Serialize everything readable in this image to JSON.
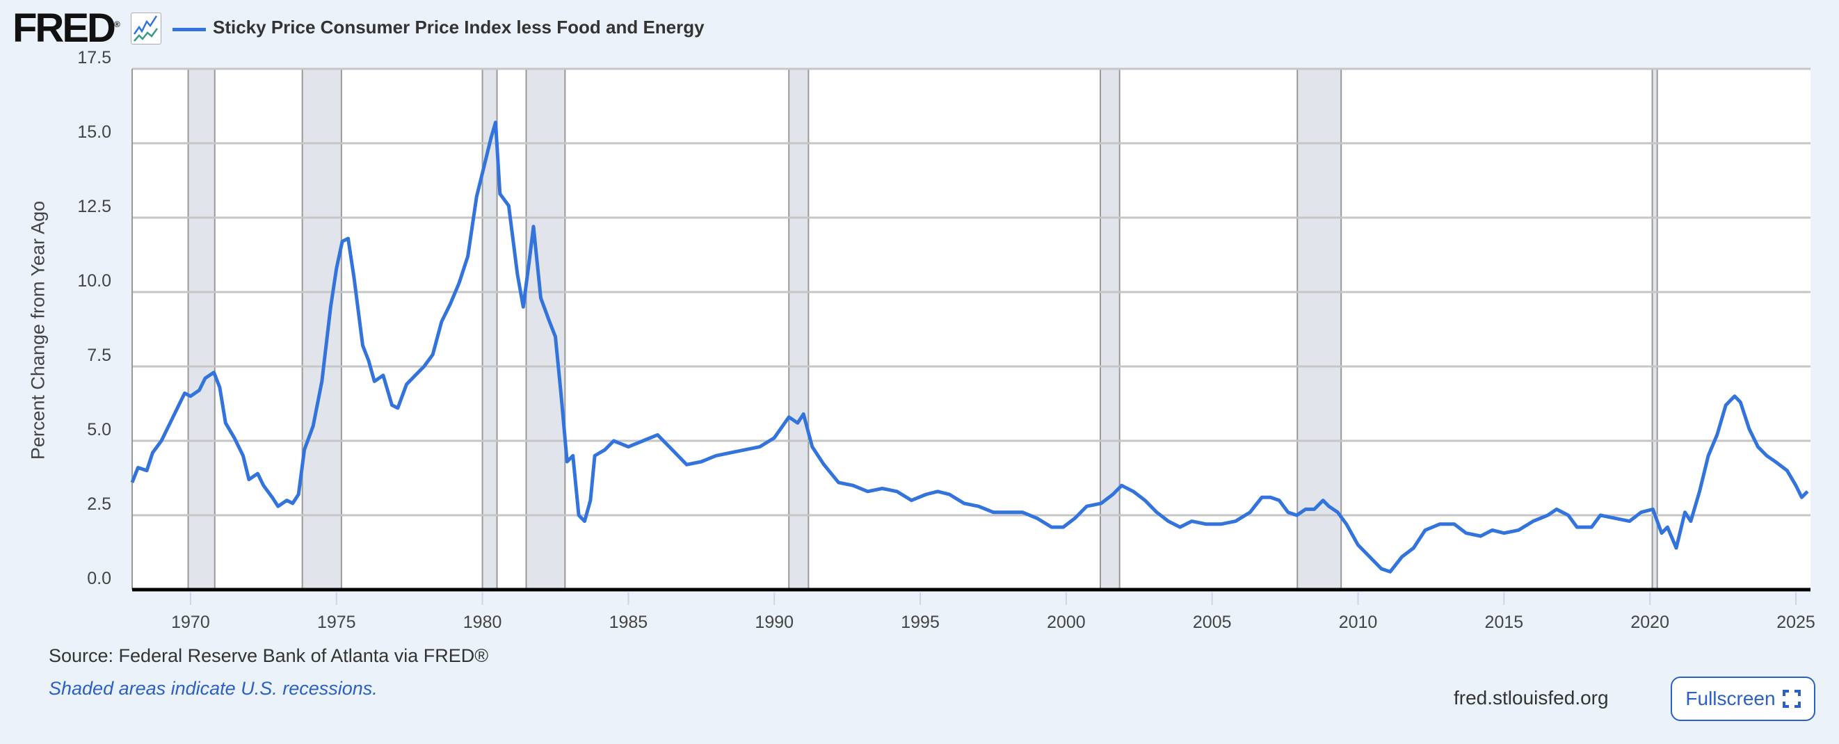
{
  "header": {
    "logo_text": "FRED",
    "logo_mark": "®",
    "icon": "line-chart-icon",
    "series_title": "Sticky Price Consumer Price Index less Food and Energy"
  },
  "footer": {
    "source": "Source: Federal Reserve Bank of Atlanta via FRED®",
    "note": "Shaded areas indicate U.S. recessions.",
    "site": "fred.stlouisfed.org",
    "fullscreen_label": "Fullscreen",
    "fullscreen_icon": "expand-icon"
  },
  "colors": {
    "line": "#3273dc",
    "recession": "#e1e5eb",
    "grid": "#c6c6c6",
    "background": "#ebf2fa",
    "accent": "#2b61c5"
  },
  "chart_data": {
    "type": "line",
    "title": "Sticky Price Consumer Price Index less Food and Energy",
    "xlabel": "",
    "ylabel": "Percent Change from Year Ago",
    "xlim": [
      1968.0,
      2025.5
    ],
    "ylim": [
      0,
      17.5
    ],
    "yticks": [
      "0.0",
      "2.5",
      "5.0",
      "7.5",
      "10.0",
      "12.5",
      "15.0",
      "17.5"
    ],
    "xticks": [
      "1970",
      "1975",
      "1980",
      "1985",
      "1990",
      "1995",
      "2000",
      "2005",
      "2010",
      "2015",
      "2020",
      "2025"
    ],
    "grid": true,
    "recessions": [
      [
        1969.92,
        1970.83
      ],
      [
        1973.83,
        1975.17
      ],
      [
        1980.0,
        1980.5
      ],
      [
        1981.5,
        1982.83
      ],
      [
        1990.5,
        1991.17
      ],
      [
        2001.17,
        2001.83
      ],
      [
        2007.92,
        2009.42
      ],
      [
        2020.08,
        2020.25
      ]
    ],
    "series": [
      {
        "name": "Sticky Price Consumer Price Index less Food and Energy",
        "points": [
          [
            1968.0,
            3.6
          ],
          [
            1968.2,
            4.1
          ],
          [
            1968.5,
            4.0
          ],
          [
            1968.7,
            4.6
          ],
          [
            1969.0,
            5.0
          ],
          [
            1969.3,
            5.6
          ],
          [
            1969.6,
            6.2
          ],
          [
            1969.8,
            6.6
          ],
          [
            1970.0,
            6.5
          ],
          [
            1970.3,
            6.7
          ],
          [
            1970.5,
            7.1
          ],
          [
            1970.8,
            7.3
          ],
          [
            1971.0,
            6.8
          ],
          [
            1971.2,
            5.6
          ],
          [
            1971.5,
            5.1
          ],
          [
            1971.8,
            4.5
          ],
          [
            1972.0,
            3.7
          ],
          [
            1972.3,
            3.9
          ],
          [
            1972.5,
            3.5
          ],
          [
            1972.8,
            3.1
          ],
          [
            1973.0,
            2.8
          ],
          [
            1973.3,
            3.0
          ],
          [
            1973.5,
            2.9
          ],
          [
            1973.7,
            3.2
          ],
          [
            1973.9,
            4.7
          ],
          [
            1974.2,
            5.5
          ],
          [
            1974.5,
            7.0
          ],
          [
            1974.8,
            9.5
          ],
          [
            1975.0,
            10.8
          ],
          [
            1975.2,
            11.7
          ],
          [
            1975.4,
            11.8
          ],
          [
            1975.6,
            10.5
          ],
          [
            1975.9,
            8.2
          ],
          [
            1976.1,
            7.7
          ],
          [
            1976.3,
            7.0
          ],
          [
            1976.6,
            7.2
          ],
          [
            1976.9,
            6.2
          ],
          [
            1977.1,
            6.1
          ],
          [
            1977.4,
            6.9
          ],
          [
            1977.7,
            7.2
          ],
          [
            1978.0,
            7.5
          ],
          [
            1978.3,
            7.9
          ],
          [
            1978.6,
            9.0
          ],
          [
            1978.9,
            9.6
          ],
          [
            1979.2,
            10.3
          ],
          [
            1979.5,
            11.2
          ],
          [
            1979.8,
            13.2
          ],
          [
            1980.0,
            14.0
          ],
          [
            1980.3,
            15.2
          ],
          [
            1980.45,
            15.7
          ],
          [
            1980.6,
            13.3
          ],
          [
            1980.9,
            12.9
          ],
          [
            1981.2,
            10.6
          ],
          [
            1981.4,
            9.5
          ],
          [
            1981.6,
            11.0
          ],
          [
            1981.75,
            12.2
          ],
          [
            1982.0,
            9.8
          ],
          [
            1982.3,
            9.0
          ],
          [
            1982.5,
            8.5
          ],
          [
            1982.7,
            6.5
          ],
          [
            1982.9,
            4.3
          ],
          [
            1983.1,
            4.5
          ],
          [
            1983.3,
            2.5
          ],
          [
            1983.5,
            2.3
          ],
          [
            1983.7,
            3.0
          ],
          [
            1983.85,
            4.5
          ],
          [
            1984.2,
            4.7
          ],
          [
            1984.5,
            5.0
          ],
          [
            1985.0,
            4.8
          ],
          [
            1985.5,
            5.0
          ],
          [
            1986.0,
            5.2
          ],
          [
            1986.5,
            4.7
          ],
          [
            1987.0,
            4.2
          ],
          [
            1987.5,
            4.3
          ],
          [
            1988.0,
            4.5
          ],
          [
            1988.5,
            4.6
          ],
          [
            1989.0,
            4.7
          ],
          [
            1989.5,
            4.8
          ],
          [
            1990.0,
            5.1
          ],
          [
            1990.5,
            5.8
          ],
          [
            1990.8,
            5.6
          ],
          [
            1991.0,
            5.9
          ],
          [
            1991.3,
            4.8
          ],
          [
            1991.7,
            4.2
          ],
          [
            1992.2,
            3.6
          ],
          [
            1992.7,
            3.5
          ],
          [
            1993.2,
            3.3
          ],
          [
            1993.7,
            3.4
          ],
          [
            1994.2,
            3.3
          ],
          [
            1994.7,
            3.0
          ],
          [
            1995.2,
            3.2
          ],
          [
            1995.6,
            3.3
          ],
          [
            1996.0,
            3.2
          ],
          [
            1996.5,
            2.9
          ],
          [
            1997.0,
            2.8
          ],
          [
            1997.5,
            2.6
          ],
          [
            1998.0,
            2.6
          ],
          [
            1998.5,
            2.6
          ],
          [
            1999.0,
            2.4
          ],
          [
            1999.5,
            2.1
          ],
          [
            1999.9,
            2.1
          ],
          [
            2000.3,
            2.4
          ],
          [
            2000.7,
            2.8
          ],
          [
            2001.2,
            2.9
          ],
          [
            2001.6,
            3.2
          ],
          [
            2001.9,
            3.5
          ],
          [
            2002.3,
            3.3
          ],
          [
            2002.7,
            3.0
          ],
          [
            2003.1,
            2.6
          ],
          [
            2003.5,
            2.3
          ],
          [
            2003.9,
            2.1
          ],
          [
            2004.3,
            2.3
          ],
          [
            2004.8,
            2.2
          ],
          [
            2005.3,
            2.2
          ],
          [
            2005.8,
            2.3
          ],
          [
            2006.3,
            2.6
          ],
          [
            2006.7,
            3.1
          ],
          [
            2007.0,
            3.1
          ],
          [
            2007.3,
            3.0
          ],
          [
            2007.6,
            2.6
          ],
          [
            2007.9,
            2.5
          ],
          [
            2008.2,
            2.7
          ],
          [
            2008.5,
            2.7
          ],
          [
            2008.8,
            3.0
          ],
          [
            2009.0,
            2.8
          ],
          [
            2009.3,
            2.6
          ],
          [
            2009.6,
            2.2
          ],
          [
            2010.0,
            1.5
          ],
          [
            2010.4,
            1.1
          ],
          [
            2010.8,
            0.7
          ],
          [
            2011.1,
            0.6
          ],
          [
            2011.5,
            1.1
          ],
          [
            2011.9,
            1.4
          ],
          [
            2012.3,
            2.0
          ],
          [
            2012.8,
            2.2
          ],
          [
            2013.3,
            2.2
          ],
          [
            2013.7,
            1.9
          ],
          [
            2014.2,
            1.8
          ],
          [
            2014.6,
            2.0
          ],
          [
            2015.0,
            1.9
          ],
          [
            2015.5,
            2.0
          ],
          [
            2016.0,
            2.3
          ],
          [
            2016.5,
            2.5
          ],
          [
            2016.8,
            2.7
          ],
          [
            2017.2,
            2.5
          ],
          [
            2017.5,
            2.1
          ],
          [
            2018.0,
            2.1
          ],
          [
            2018.3,
            2.5
          ],
          [
            2018.8,
            2.4
          ],
          [
            2019.3,
            2.3
          ],
          [
            2019.7,
            2.6
          ],
          [
            2020.1,
            2.7
          ],
          [
            2020.4,
            1.9
          ],
          [
            2020.6,
            2.1
          ],
          [
            2020.9,
            1.4
          ],
          [
            2021.2,
            2.6
          ],
          [
            2021.4,
            2.3
          ],
          [
            2021.7,
            3.3
          ],
          [
            2022.0,
            4.5
          ],
          [
            2022.3,
            5.2
          ],
          [
            2022.6,
            6.2
          ],
          [
            2022.9,
            6.5
          ],
          [
            2023.1,
            6.3
          ],
          [
            2023.4,
            5.4
          ],
          [
            2023.7,
            4.8
          ],
          [
            2024.0,
            4.5
          ],
          [
            2024.3,
            4.3
          ],
          [
            2024.7,
            4.0
          ],
          [
            2025.0,
            3.5
          ],
          [
            2025.2,
            3.1
          ],
          [
            2025.4,
            3.3
          ]
        ]
      }
    ]
  }
}
